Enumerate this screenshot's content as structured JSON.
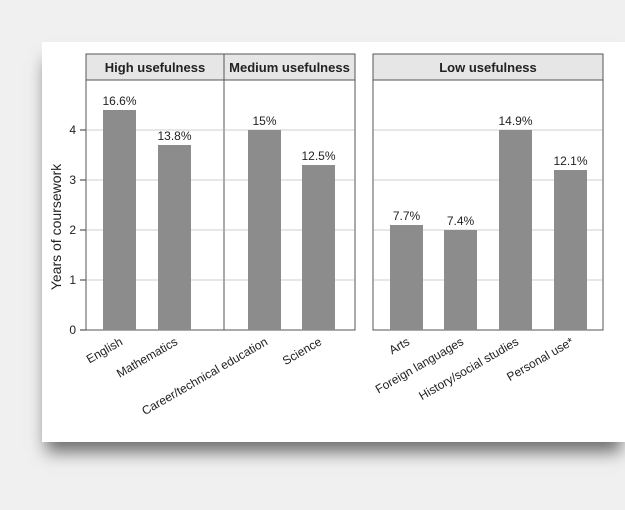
{
  "chart_data": {
    "type": "bar",
    "ylabel": "Years of coursework",
    "ylim": [
      0,
      5
    ],
    "yticks": [
      0,
      1,
      2,
      3,
      4
    ],
    "grid": true,
    "bar_color": "#8c8c8c",
    "panel_header_color": "#e6e6e6",
    "panels": [
      {
        "title": "High usefulness",
        "categories": [
          "English",
          "Mathematics"
        ],
        "values": [
          4.4,
          3.7
        ],
        "labels": [
          "16.6%",
          "13.8%"
        ]
      },
      {
        "title": "Medium usefulness",
        "categories": [
          "Career/technical education",
          "Science"
        ],
        "values": [
          4.0,
          3.3
        ],
        "labels": [
          "15%",
          "12.5%"
        ]
      },
      {
        "title": "Low usefulness",
        "categories": [
          "Arts",
          "Foreign languages",
          "History/social studies",
          "Personal use*"
        ],
        "values": [
          2.1,
          2.0,
          4.0,
          3.2
        ],
        "labels": [
          "7.7%",
          "7.4%",
          "14.9%",
          "12.1%"
        ]
      }
    ]
  }
}
